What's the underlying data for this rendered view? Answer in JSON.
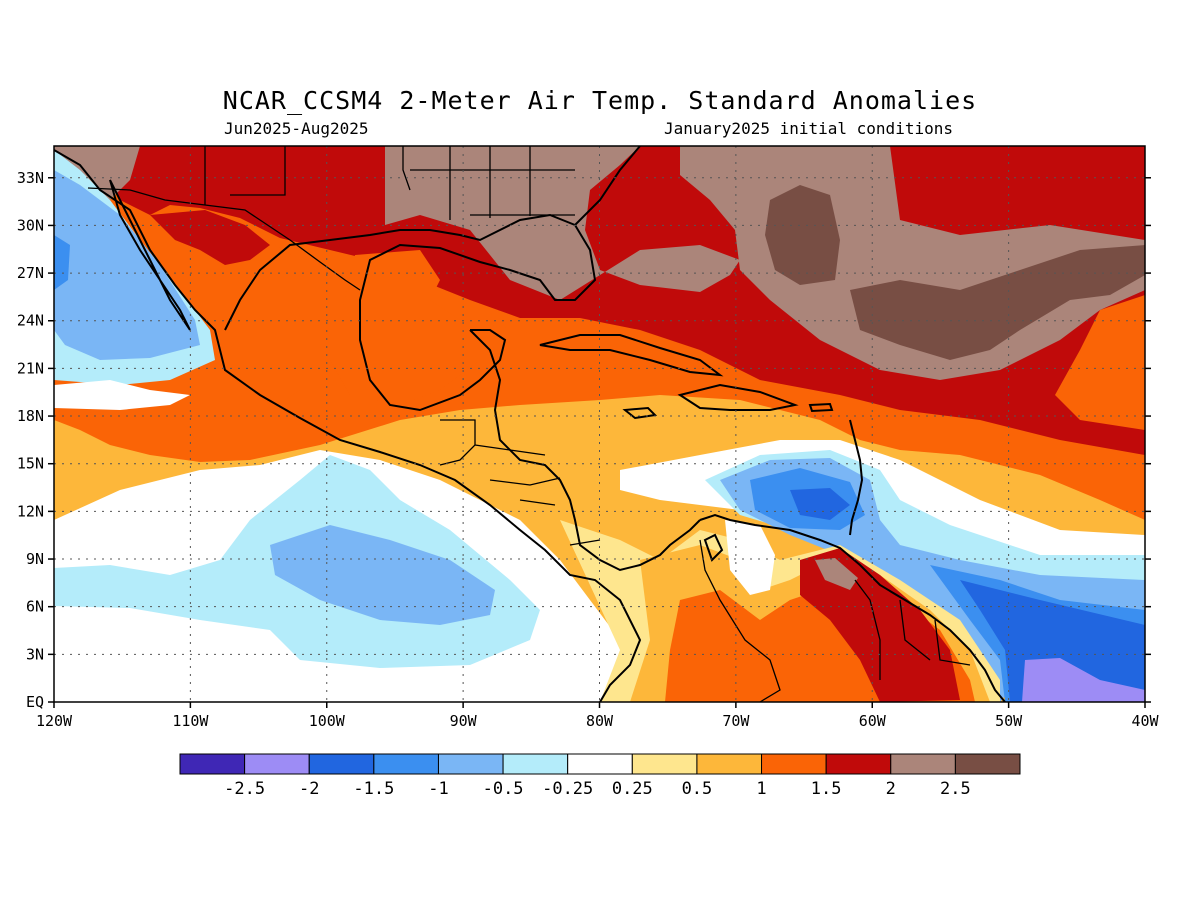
{
  "title": "NCAR_CCSM4 2-Meter Air Temp. Standard Anomalies",
  "subtitle_left": "Jun2025-Aug2025",
  "subtitle_right": "January2025 initial conditions",
  "map_extent": {
    "lon": [
      -120,
      -40
    ],
    "lat": [
      0,
      35
    ]
  },
  "lon_ticks": [
    {
      "value": -120,
      "label": "120W"
    },
    {
      "value": -110,
      "label": "110W"
    },
    {
      "value": -100,
      "label": "100W"
    },
    {
      "value": -90,
      "label": "90W"
    },
    {
      "value": -80,
      "label": "80W"
    },
    {
      "value": -70,
      "label": "70W"
    },
    {
      "value": -60,
      "label": "60W"
    },
    {
      "value": -50,
      "label": "50W"
    },
    {
      "value": -40,
      "label": "40W"
    }
  ],
  "lat_ticks": [
    {
      "value": 0,
      "label": "EQ"
    },
    {
      "value": 3,
      "label": "3N"
    },
    {
      "value": 6,
      "label": "6N"
    },
    {
      "value": 9,
      "label": "9N"
    },
    {
      "value": 12,
      "label": "12N"
    },
    {
      "value": 15,
      "label": "15N"
    },
    {
      "value": 18,
      "label": "18N"
    },
    {
      "value": 21,
      "label": "21N"
    },
    {
      "value": 24,
      "label": "24N"
    },
    {
      "value": 27,
      "label": "27N"
    },
    {
      "value": 30,
      "label": "30N"
    },
    {
      "value": 33,
      "label": "33N"
    }
  ],
  "gridlines": "dotted",
  "colorbar": {
    "colors": [
      "#3f27b5",
      "#9d8cf5",
      "#2166e0",
      "#3b8ff0",
      "#7ab6f5",
      "#b4ecfa",
      "#ffffff",
      "#fee68e",
      "#fdb73a",
      "#fa6406",
      "#c00a0a",
      "#ab857a",
      "#784e44"
    ],
    "labels": [
      "-2.5",
      "-2",
      "-1.5",
      "-1",
      "-0.5",
      "-0.25",
      "0.25",
      "0.5",
      "1",
      "1.5",
      "2",
      "2.5"
    ]
  }
}
